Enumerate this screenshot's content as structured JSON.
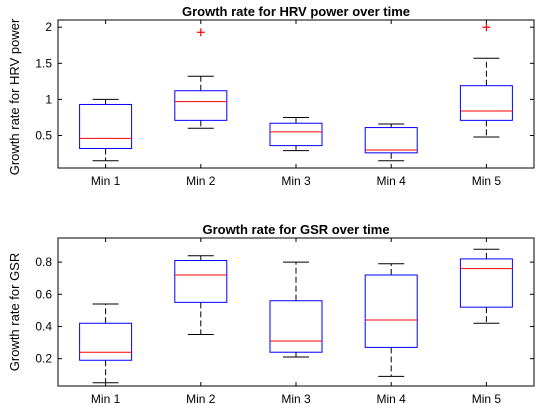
{
  "chart_data": [
    {
      "type": "boxplot",
      "title": "Growth rate for HRV power over time",
      "xlabel": "",
      "ylabel": "Growth rate for HRV power",
      "ylim": [
        0.05,
        2.1
      ],
      "yticks": [
        0.5,
        1,
        1.5,
        2
      ],
      "ytick_labels": [
        "0.5",
        "1",
        "1.5",
        "2"
      ],
      "categories": [
        "Min 1",
        "Min 2",
        "Min 3",
        "Min 4",
        "Min 5"
      ],
      "boxes": [
        {
          "category": "Min 1",
          "whisker_low": 0.15,
          "q1": 0.32,
          "median": 0.46,
          "q3": 0.93,
          "whisker_high": 1.0,
          "outliers": []
        },
        {
          "category": "Min 2",
          "whisker_low": 0.6,
          "q1": 0.71,
          "median": 0.97,
          "q3": 1.12,
          "whisker_high": 1.32,
          "outliers": [
            1.93
          ]
        },
        {
          "category": "Min 3",
          "whisker_low": 0.29,
          "q1": 0.36,
          "median": 0.55,
          "q3": 0.67,
          "whisker_high": 0.75,
          "outliers": []
        },
        {
          "category": "Min 4",
          "whisker_low": 0.15,
          "q1": 0.26,
          "median": 0.3,
          "q3": 0.61,
          "whisker_high": 0.66,
          "outliers": []
        },
        {
          "category": "Min 5",
          "whisker_low": 0.48,
          "q1": 0.71,
          "median": 0.84,
          "q3": 1.19,
          "whisker_high": 1.57,
          "outliers": [
            2.0
          ]
        }
      ],
      "grid": false,
      "colors": {
        "box": "#0000ff",
        "median": "#ff0000",
        "whisker": "#000000",
        "outlier": "#ff0000"
      }
    },
    {
      "type": "boxplot",
      "title": "Growth rate for GSR over time",
      "xlabel": "",
      "ylabel": "Growth rate for GSR",
      "ylim": [
        0.03,
        0.95
      ],
      "yticks": [
        0.2,
        0.4,
        0.6,
        0.8
      ],
      "ytick_labels": [
        "0.2",
        "0.4",
        "0.6",
        "0.8"
      ],
      "categories": [
        "Min 1",
        "Min 2",
        "Min 3",
        "Min 4",
        "Min 5"
      ],
      "boxes": [
        {
          "category": "Min 1",
          "whisker_low": 0.05,
          "q1": 0.19,
          "median": 0.24,
          "q3": 0.42,
          "whisker_high": 0.54,
          "outliers": []
        },
        {
          "category": "Min 2",
          "whisker_low": 0.35,
          "q1": 0.55,
          "median": 0.72,
          "q3": 0.81,
          "whisker_high": 0.84,
          "outliers": []
        },
        {
          "category": "Min 3",
          "whisker_low": 0.21,
          "q1": 0.24,
          "median": 0.31,
          "q3": 0.56,
          "whisker_high": 0.8,
          "outliers": []
        },
        {
          "category": "Min 4",
          "whisker_low": 0.09,
          "q1": 0.27,
          "median": 0.44,
          "q3": 0.72,
          "whisker_high": 0.79,
          "outliers": []
        },
        {
          "category": "Min 5",
          "whisker_low": 0.42,
          "q1": 0.52,
          "median": 0.76,
          "q3": 0.82,
          "whisker_high": 0.88,
          "outliers": []
        }
      ],
      "grid": false,
      "colors": {
        "box": "#0000ff",
        "median": "#ff0000",
        "whisker": "#000000",
        "outlier": "#ff0000"
      }
    }
  ]
}
